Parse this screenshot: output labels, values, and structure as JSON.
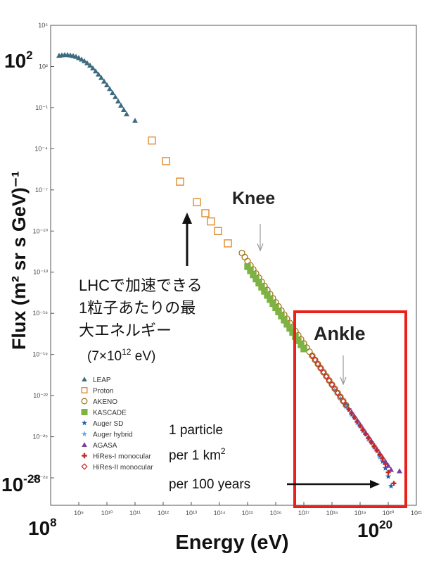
{
  "chart_data": {
    "type": "scatter",
    "title": "",
    "xlabel": "Energy (eV)",
    "ylabel": "Flux (m² sr s GeV)⁻¹",
    "x_scale": "log",
    "y_scale": "log",
    "xlim_log10": [
      8,
      21
    ],
    "ylim_log10": [
      -30,
      5
    ],
    "x_ticks": [
      {
        "exp": 9,
        "label": "10⁹"
      },
      {
        "exp": 10,
        "label": "10¹⁰"
      },
      {
        "exp": 11,
        "label": "10¹¹"
      },
      {
        "exp": 12,
        "label": "10¹²"
      },
      {
        "exp": 13,
        "label": "10¹³"
      },
      {
        "exp": 14,
        "label": "10¹⁴"
      },
      {
        "exp": 15,
        "label": "10¹⁵"
      },
      {
        "exp": 16,
        "label": "10¹⁶"
      },
      {
        "exp": 17,
        "label": "10¹⁷"
      },
      {
        "exp": 18,
        "label": "10¹⁸"
      },
      {
        "exp": 19,
        "label": "10¹⁹"
      },
      {
        "exp": 20,
        "label": "10²⁰"
      },
      {
        "exp": 21,
        "label": "10²¹"
      }
    ],
    "y_ticks": [
      {
        "exp": 5,
        "label": "10⁵"
      },
      {
        "exp": 2,
        "label": "10²"
      },
      {
        "exp": -1,
        "label": "10⁻¹"
      },
      {
        "exp": -4,
        "label": "10⁻⁴"
      },
      {
        "exp": -7,
        "label": "10⁻⁷"
      },
      {
        "exp": -10,
        "label": "10⁻¹⁰"
      },
      {
        "exp": -13,
        "label": "10⁻¹³"
      },
      {
        "exp": -16,
        "label": "10⁻¹⁶"
      },
      {
        "exp": -19,
        "label": "10⁻¹⁹"
      },
      {
        "exp": -22,
        "label": "10⁻²²"
      },
      {
        "exp": -25,
        "label": "10⁻²⁵"
      },
      {
        "exp": -28,
        "label": "10⁻²⁸"
      }
    ],
    "big_labels": {
      "y_top": {
        "base": "10",
        "exp": "2"
      },
      "y_bottom": {
        "base": "10",
        "exp": "-28"
      },
      "x_left": {
        "base": "10",
        "exp": "8"
      },
      "x_right": {
        "base": "10",
        "exp": "20"
      }
    },
    "series": [
      {
        "name": "LEAP",
        "marker": "triangle",
        "color": "#3d6b7f",
        "filled": true,
        "x_log10": [
          8.3,
          8.4,
          8.5,
          8.6,
          8.7,
          8.8,
          8.9,
          9.0,
          9.1,
          9.2,
          9.3,
          9.4,
          9.5,
          9.6,
          9.7,
          9.8,
          9.9,
          10.0,
          10.1,
          10.2,
          10.3,
          10.4,
          10.5,
          10.6,
          10.7,
          11.0
        ],
        "y_log10": [
          2.8,
          2.83,
          2.85,
          2.85,
          2.82,
          2.78,
          2.72,
          2.63,
          2.52,
          2.4,
          2.25,
          2.08,
          1.88,
          1.66,
          1.43,
          1.18,
          0.92,
          0.65,
          0.37,
          0.08,
          -0.22,
          -0.53,
          -0.84,
          -1.15,
          -1.47,
          -1.95
        ]
      },
      {
        "name": "Proton",
        "marker": "square",
        "color": "#e08a2c",
        "filled": false,
        "x_log10": [
          11.6,
          12.1,
          12.6,
          13.2,
          13.5,
          13.7,
          13.95,
          14.3
        ],
        "y_log10": [
          -3.4,
          -4.9,
          -6.4,
          -7.9,
          -8.7,
          -9.3,
          -10.0,
          -10.9
        ]
      },
      {
        "name": "AKENO",
        "marker": "circle",
        "color": "#a07818",
        "filled": false,
        "x_log10": [
          14.8,
          14.9,
          15.0,
          15.1,
          15.2,
          15.3,
          15.4,
          15.5,
          15.6,
          15.7,
          15.8,
          15.9,
          16.0,
          16.1,
          16.2,
          16.3,
          16.4,
          16.5,
          16.6,
          16.7,
          16.8,
          16.9,
          17.0,
          17.1,
          17.2,
          17.3,
          17.4,
          17.5,
          17.6,
          17.7,
          17.8,
          17.9,
          18.0,
          18.1,
          18.2,
          18.3,
          18.4,
          18.5
        ],
        "y_log10": [
          -11.6,
          -11.9,
          -12.2,
          -12.5,
          -12.8,
          -13.1,
          -13.4,
          -13.7,
          -14.0,
          -14.3,
          -14.6,
          -14.9,
          -15.2,
          -15.5,
          -15.8,
          -16.1,
          -16.4,
          -16.7,
          -17.0,
          -17.3,
          -17.6,
          -17.9,
          -18.2,
          -18.5,
          -18.8,
          -19.1,
          -19.4,
          -19.7,
          -20.0,
          -20.3,
          -20.6,
          -20.9,
          -21.2,
          -21.5,
          -21.8,
          -22.1,
          -22.4,
          -22.7
        ]
      },
      {
        "name": "KASCADE",
        "marker": "square",
        "color": "#7cb342",
        "filled": true,
        "x_log10": [
          15.0,
          15.1,
          15.2,
          15.3,
          15.4,
          15.5,
          15.6,
          15.7,
          15.8,
          15.9,
          16.0,
          16.1,
          16.2,
          16.3,
          16.4,
          16.5,
          16.6,
          16.7,
          16.8,
          16.9,
          17.0
        ],
        "y_log10": [
          -12.6,
          -12.9,
          -13.2,
          -13.5,
          -13.8,
          -14.1,
          -14.4,
          -14.7,
          -15.0,
          -15.3,
          -15.6,
          -15.9,
          -16.2,
          -16.5,
          -16.8,
          -17.1,
          -17.4,
          -17.7,
          -18.0,
          -18.3,
          -18.6
        ]
      },
      {
        "name": "Auger SD",
        "marker": "star",
        "color": "#1e5fb4",
        "filled": true,
        "x_log10": [
          18.5,
          18.6,
          18.7,
          18.8,
          18.9,
          19.0,
          19.1,
          19.2,
          19.3,
          19.4,
          19.5,
          19.6,
          19.7,
          19.8,
          19.9,
          20.0,
          20.1
        ],
        "y_log10": [
          -22.7,
          -23.0,
          -23.3,
          -23.6,
          -23.9,
          -24.2,
          -24.5,
          -24.8,
          -25.1,
          -25.4,
          -25.7,
          -26.0,
          -26.4,
          -26.8,
          -27.3,
          -27.9,
          -28.6
        ]
      },
      {
        "name": "Auger hybrid",
        "marker": "star",
        "color": "#5aa9e6",
        "filled": true,
        "x_log10": [
          18.1,
          18.3,
          18.5,
          18.7,
          18.9,
          19.1,
          19.3,
          19.5,
          19.7
        ],
        "y_log10": [
          -21.6,
          -22.2,
          -22.8,
          -23.4,
          -24.0,
          -24.6,
          -25.2,
          -25.8,
          -26.5
        ]
      },
      {
        "name": "AGASA",
        "marker": "triangle",
        "color": "#7b3fa0",
        "filled": true,
        "x_log10": [
          18.7,
          18.8,
          18.9,
          19.0,
          19.1,
          19.2,
          19.3,
          19.4,
          19.5,
          19.6,
          19.7,
          19.8,
          19.9,
          20.0,
          20.1,
          20.4
        ],
        "y_log10": [
          -23.2,
          -23.5,
          -23.8,
          -24.1,
          -24.4,
          -24.7,
          -25.0,
          -25.3,
          -25.6,
          -25.9,
          -26.2,
          -26.5,
          -26.8,
          -27.1,
          -27.4,
          -27.5
        ]
      },
      {
        "name": "HiRes-I monocular",
        "marker": "plus",
        "color": "#c62828",
        "filled": true,
        "x_log10": [
          18.6,
          18.7,
          18.8,
          18.9,
          19.0,
          19.1,
          19.2,
          19.3,
          19.4,
          19.5,
          19.6,
          19.7,
          19.8,
          19.9,
          20.0,
          20.2
        ],
        "y_log10": [
          -23.0,
          -23.3,
          -23.6,
          -23.9,
          -24.2,
          -24.5,
          -24.8,
          -25.1,
          -25.4,
          -25.7,
          -26.0,
          -26.3,
          -26.6,
          -27.0,
          -27.6,
          -28.4
        ]
      },
      {
        "name": "HiRes-II monocular",
        "marker": "diamond",
        "color": "#c62828",
        "filled": false,
        "x_log10": [
          17.3,
          17.4,
          17.5,
          17.6,
          17.7,
          17.8,
          17.9,
          18.0,
          18.1,
          18.2,
          18.3,
          18.4,
          18.5
        ],
        "y_log10": [
          -19.1,
          -19.4,
          -19.7,
          -20.0,
          -20.3,
          -20.6,
          -20.9,
          -21.2,
          -21.5,
          -21.8,
          -22.1,
          -22.4,
          -22.7
        ]
      }
    ],
    "annotations": {
      "knee_label": "Knee",
      "ankle_label": "Ankle",
      "lhc_text": [
        "LHCで加速できる",
        "1粒子あたりの最",
        "大エネルギー"
      ],
      "lhc_value": {
        "prefix": "(7×10",
        "exp": "12",
        "suffix": " eV)"
      },
      "per_particle": {
        "line1": "1 particle",
        "line2_prefix": "per 1 km",
        "line2_exp": "2",
        "line3": "per 100 years"
      }
    },
    "legend_position": "bottom-left",
    "colors": {
      "ankle_box": "#e8211b",
      "axis": "#333333",
      "arrow": "#111111"
    }
  }
}
